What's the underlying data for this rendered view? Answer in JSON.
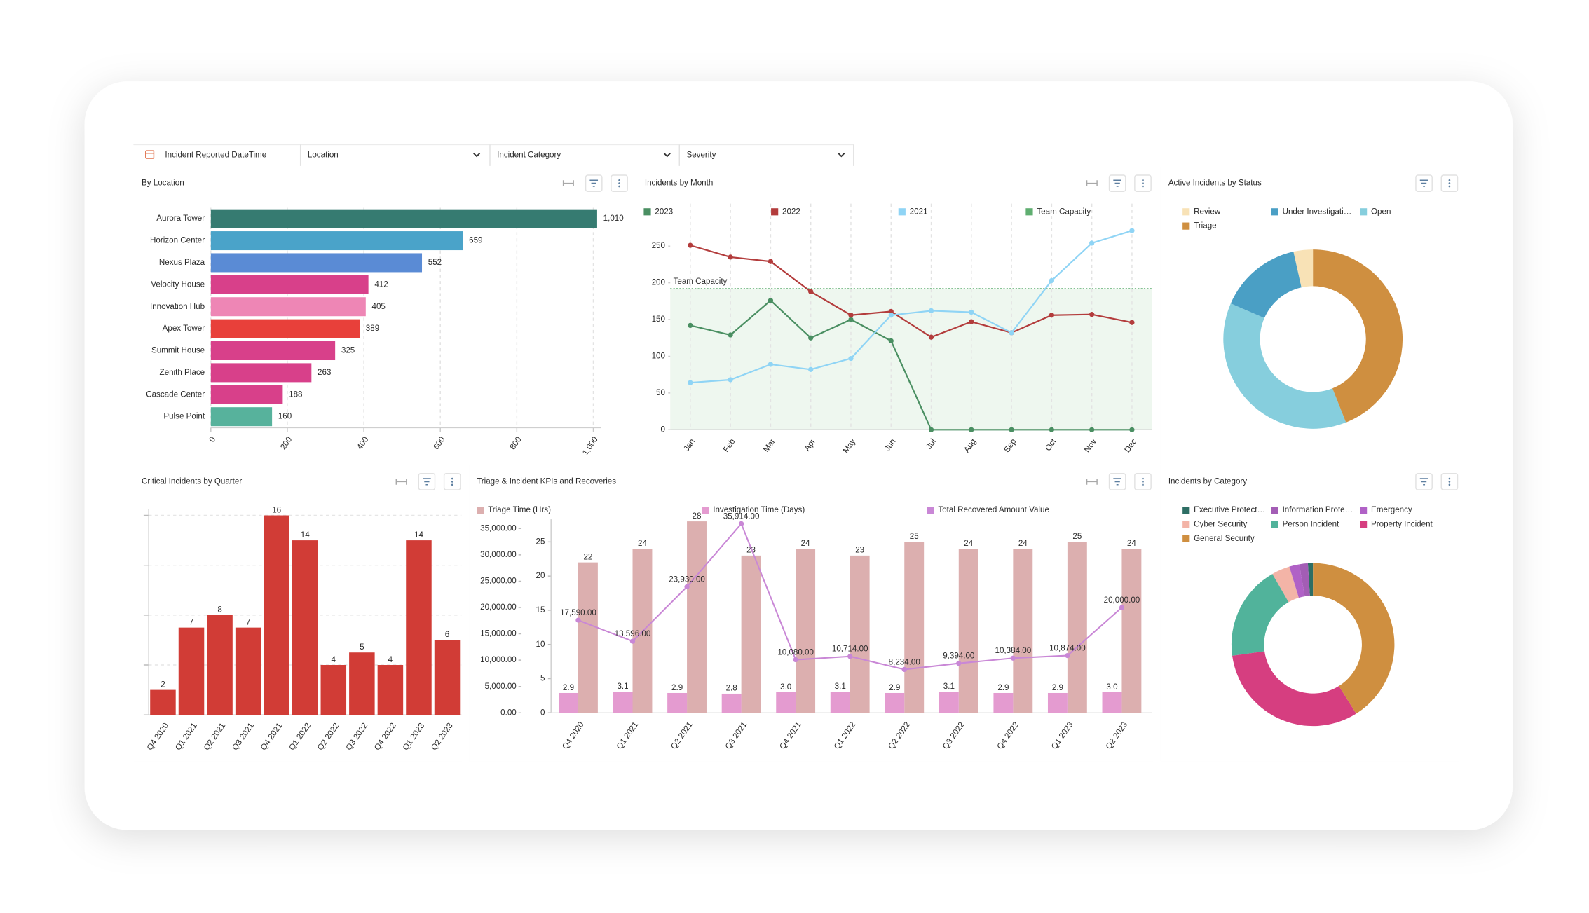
{
  "filters": [
    "Incident Reported DateTime",
    "Location",
    "Incident Category",
    "Severity"
  ],
  "chart_data": [
    {
      "type": "bar",
      "orientation": "horizontal",
      "title": "By Location",
      "categories": [
        "Aurora Tower",
        "Horizon Center",
        "Nexus Plaza",
        "Velocity House",
        "Innovation Hub",
        "Apex Tower",
        "Summit House",
        "Zenith Place",
        "Cascade Center",
        "Pulse Point"
      ],
      "values": [
        1010,
        659,
        552,
        412,
        405,
        389,
        325,
        263,
        188,
        160
      ],
      "value_labels": [
        "1,010",
        "659",
        "552",
        "412",
        "405",
        "389",
        "325",
        "263",
        "188",
        "160"
      ],
      "colors": [
        "#367b71",
        "#4aa3c9",
        "#5a8bd5",
        "#d8408a",
        "#ee86b5",
        "#e8403a",
        "#d8408a",
        "#d8408a",
        "#d8408a",
        "#57b29c"
      ],
      "xlim": [
        0,
        1020
      ],
      "xticks": [
        0,
        200,
        400,
        600,
        800,
        {
          "value": 1000,
          "label": "1,000"
        }
      ],
      "grid": true
    },
    {
      "type": "line",
      "title": "Incidents by Month",
      "categories": [
        "Jan",
        "Feb",
        "Mar",
        "Apr",
        "May",
        "Jun",
        "Jul",
        "Aug",
        "Sep",
        "Oct",
        "Nov",
        "Dec"
      ],
      "series": [
        {
          "name": "2023",
          "color": "#4a8f62",
          "values": [
            142,
            129,
            176,
            125,
            150,
            121,
            0,
            0,
            0,
            0,
            0,
            0
          ]
        },
        {
          "name": "2022",
          "color": "#b33c3c",
          "values": [
            251,
            235,
            229,
            188,
            156,
            161,
            126,
            147,
            132,
            156,
            157,
            146
          ]
        },
        {
          "name": "2021",
          "color": "#8fd4f5",
          "values": [
            64,
            68,
            89,
            82,
            97,
            156,
            162,
            160,
            132,
            203,
            254,
            271
          ]
        }
      ],
      "capacity": {
        "name": "Team Capacity",
        "value": 192,
        "color": "#5fae70",
        "fill": "#eef7ef"
      },
      "annotations": [
        "Team Capacity"
      ],
      "ylim": [
        0,
        280
      ],
      "yticks": [
        0,
        50,
        100,
        150,
        200,
        250
      ],
      "grid": true,
      "legend": "top"
    },
    {
      "type": "donut",
      "title": "Active Incidents by Status",
      "categories": [
        "Review",
        "Under Investigati…",
        "Open",
        "Triage"
      ],
      "values": [
        3.5,
        15,
        37.5,
        44
      ],
      "colors": [
        "#f8e2b6",
        "#4a9fc5",
        "#86cedd",
        "#cf8f40"
      ],
      "legend": "top"
    },
    {
      "type": "bar",
      "title": "Critical Incidents by Quarter",
      "categories": [
        "Q4 2020",
        "Q1 2021",
        "Q2 2021",
        "Q3 2021",
        "Q4 2021",
        "Q1 2022",
        "Q2 2022",
        "Q3 2022",
        "Q4 2022",
        "Q1 2023",
        "Q2 2023"
      ],
      "values": [
        2,
        7,
        8,
        7,
        16,
        14,
        4,
        5,
        4,
        14,
        6
      ],
      "color": "#d13c36",
      "ylim": [
        0,
        16.5
      ],
      "yticks": [
        0,
        4,
        8,
        12,
        16
      ],
      "grid": true
    },
    {
      "type": "combo",
      "title": "Triage & Incident KPIs and Recoveries",
      "categories": [
        "Q4 2020",
        "Q1 2021",
        "Q2 2021",
        "Q3 2021",
        "Q4 2021",
        "Q1 2022",
        "Q2 2022",
        "Q3 2022",
        "Q4 2022",
        "Q1 2023",
        "Q2 2023"
      ],
      "series": [
        {
          "name": "Triage Time (Hrs)",
          "type": "bar",
          "color": "#dcafaf",
          "values": [
            22,
            24,
            28,
            23,
            24,
            23,
            25,
            24,
            24,
            25,
            24
          ]
        },
        {
          "name": "Investigation Time (Days)",
          "type": "bar",
          "color": "#e49bd0",
          "values": [
            2.9,
            3.1,
            2.9,
            2.8,
            3.0,
            3.1,
            2.9,
            3.1,
            2.9,
            2.9,
            3.0
          ],
          "value_labels": [
            "2.9",
            "3.1",
            "2.9",
            "2.8",
            "3.0",
            "3.1",
            "2.9",
            "3.1",
            "2.9",
            "2.9",
            "3.0"
          ]
        },
        {
          "name": "Total Recovered Amount Value",
          "type": "line",
          "axis": "y2",
          "color": "#c987d6",
          "values": [
            17590,
            13596,
            23930,
            35914,
            10080,
            10714,
            8234,
            9394,
            10384,
            10874,
            20000
          ],
          "value_labels": [
            "17,590.00",
            "13,596.00",
            "23,930.00",
            "35,914.00",
            "10,080.00",
            "10,714.00",
            "8,234.00",
            "9,394.00",
            "10,384.00",
            "10,874.00",
            "20,000.00"
          ]
        }
      ],
      "ylim": [
        0,
        28.3
      ],
      "yticks": [
        0,
        5,
        10,
        15,
        20,
        25
      ],
      "y2lim": [
        0,
        36750
      ],
      "y2ticks": [
        {
          "value": 0,
          "label": "0.00"
        },
        {
          "value": 5000,
          "label": "5,000.00"
        },
        {
          "value": 10000,
          "label": "10,000.00"
        },
        {
          "value": 15000,
          "label": "15,000.00"
        },
        {
          "value": 20000,
          "label": "20,000.00"
        },
        {
          "value": 25000,
          "label": "25,000.00"
        },
        {
          "value": 30000,
          "label": "30,000.00"
        },
        {
          "value": 35000,
          "label": "35,000.00"
        }
      ],
      "legend": "top"
    },
    {
      "type": "donut",
      "title": "Incidents by Category",
      "categories": [
        "Executive Protect…",
        "Information Prote…",
        "Emergency",
        "Cyber Security",
        "Person Incident",
        "Property Incident",
        "General Security"
      ],
      "values": [
        1,
        1.7,
        2,
        3.6,
        18.9,
        31.7,
        41.1
      ],
      "colors": [
        "#2d6e64",
        "#a35db5",
        "#b061c6",
        "#f3b4a7",
        "#51b39b",
        "#d63e80",
        "#cf8f40"
      ],
      "legend": "top"
    }
  ]
}
